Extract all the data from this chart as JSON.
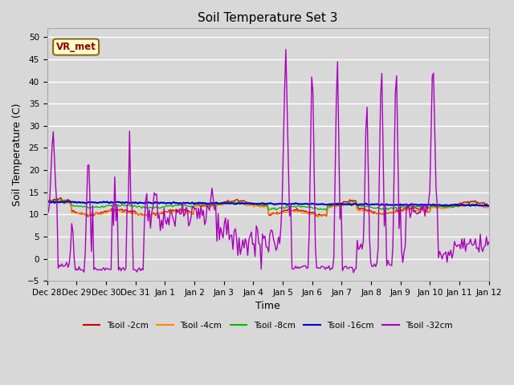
{
  "title": "Soil Temperature Set 3",
  "xlabel": "Time",
  "ylabel": "Soil Temperature (C)",
  "ylim": [
    -5,
    52
  ],
  "yticks": [
    -5,
    0,
    5,
    10,
    15,
    20,
    25,
    30,
    35,
    40,
    45,
    50
  ],
  "bg_color": "#d8d8d8",
  "plot_bg_color": "#d8d8d8",
  "grid_color": "white",
  "annotation_text": "VR_met",
  "annotation_bg": "#ffffcc",
  "annotation_border": "#8b6914",
  "annotation_text_color": "#8b0000",
  "line_colors": {
    "Tsoil -2cm": "#cc0000",
    "Tsoil -4cm": "#ff8800",
    "Tsoil -8cm": "#00bb00",
    "Tsoil -16cm": "#0000cc",
    "Tsoil -32cm": "#aa00bb"
  },
  "legend_labels": [
    "Tsoil -2cm",
    "Tsoil -4cm",
    "Tsoil -8cm",
    "Tsoil -16cm",
    "Tsoil -32cm"
  ],
  "n_days": 15,
  "xtick_labels": [
    "Dec 28",
    "Dec 29",
    "Dec 30",
    "Dec 31",
    "Jan 1",
    "Jan 2",
    "Jan 3",
    "Jan 4",
    "Jan 5",
    "Jan 6",
    "Jan 7",
    "Jan 8",
    "Jan 9",
    "Jan 10",
    "Jan 11",
    "Jan 12"
  ]
}
